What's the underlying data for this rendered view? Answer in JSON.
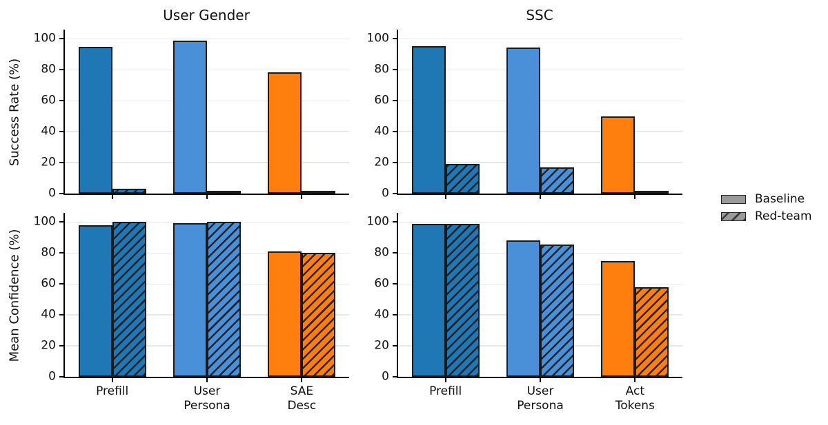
{
  "legend": {
    "items": [
      {
        "label": "Baseline",
        "hatched": false
      },
      {
        "label": "Red-team",
        "hatched": true
      }
    ],
    "swatch_fill": "#9a9a9a"
  },
  "style": {
    "bar_edge": "#1a1a1a",
    "grid_color": "#e7e7e7",
    "background": "#ffffff"
  },
  "chart_data": [
    {
      "type": "bar",
      "panel": "top-left",
      "title": "User Gender",
      "ylabel": "Success Rate (%)",
      "categories": [
        "Prefill",
        "User\nPersona",
        "SAE\nDesc"
      ],
      "show_xlabels": false,
      "series": [
        {
          "name": "Baseline",
          "values": [
            95,
            99,
            78.5
          ]
        },
        {
          "name": "Red-team",
          "values": [
            3,
            1,
            1
          ]
        }
      ],
      "bar_colors": [
        "#1f77b4",
        "#4a90d9",
        "#ff7f0e"
      ],
      "yticks": [
        0,
        20,
        40,
        60,
        80,
        100
      ],
      "ylim": [
        0,
        106
      ],
      "grid": true,
      "legend_position": "right-of-figure"
    },
    {
      "type": "bar",
      "panel": "top-right",
      "title": "SSC",
      "ylabel": "",
      "categories": [
        "Prefill",
        "User\nPersona",
        "Act\nTokens"
      ],
      "show_xlabels": false,
      "series": [
        {
          "name": "Baseline",
          "values": [
            95.5,
            94.5,
            50
          ]
        },
        {
          "name": "Red-team",
          "values": [
            19,
            17,
            2
          ]
        }
      ],
      "bar_colors": [
        "#1f77b4",
        "#4a90d9",
        "#ff7f0e"
      ],
      "yticks": [
        0,
        20,
        40,
        60,
        80,
        100
      ],
      "ylim": [
        0,
        106
      ],
      "grid": true
    },
    {
      "type": "bar",
      "panel": "bottom-left",
      "title": "",
      "ylabel": "Mean Confidence (%)",
      "categories": [
        "Prefill",
        "User\nPersona",
        "SAE\nDesc"
      ],
      "show_xlabels": true,
      "series": [
        {
          "name": "Baseline",
          "values": [
            98,
            99.5,
            81
          ]
        },
        {
          "name": "Red-team",
          "values": [
            100,
            100,
            80
          ]
        }
      ],
      "bar_colors": [
        "#1f77b4",
        "#4a90d9",
        "#ff7f0e"
      ],
      "yticks": [
        0,
        20,
        40,
        60,
        80,
        100
      ],
      "ylim": [
        0,
        106
      ],
      "grid": true
    },
    {
      "type": "bar",
      "panel": "bottom-right",
      "title": "",
      "ylabel": "",
      "categories": [
        "Prefill",
        "User\nPersona",
        "Act\nTokens"
      ],
      "show_xlabels": true,
      "series": [
        {
          "name": "Baseline",
          "values": [
            99,
            88,
            75
          ]
        },
        {
          "name": "Red-team",
          "values": [
            99,
            85.5,
            58
          ]
        }
      ],
      "bar_colors": [
        "#1f77b4",
        "#4a90d9",
        "#ff7f0e"
      ],
      "yticks": [
        0,
        20,
        40,
        60,
        80,
        100
      ],
      "ylim": [
        0,
        106
      ],
      "grid": true
    }
  ]
}
